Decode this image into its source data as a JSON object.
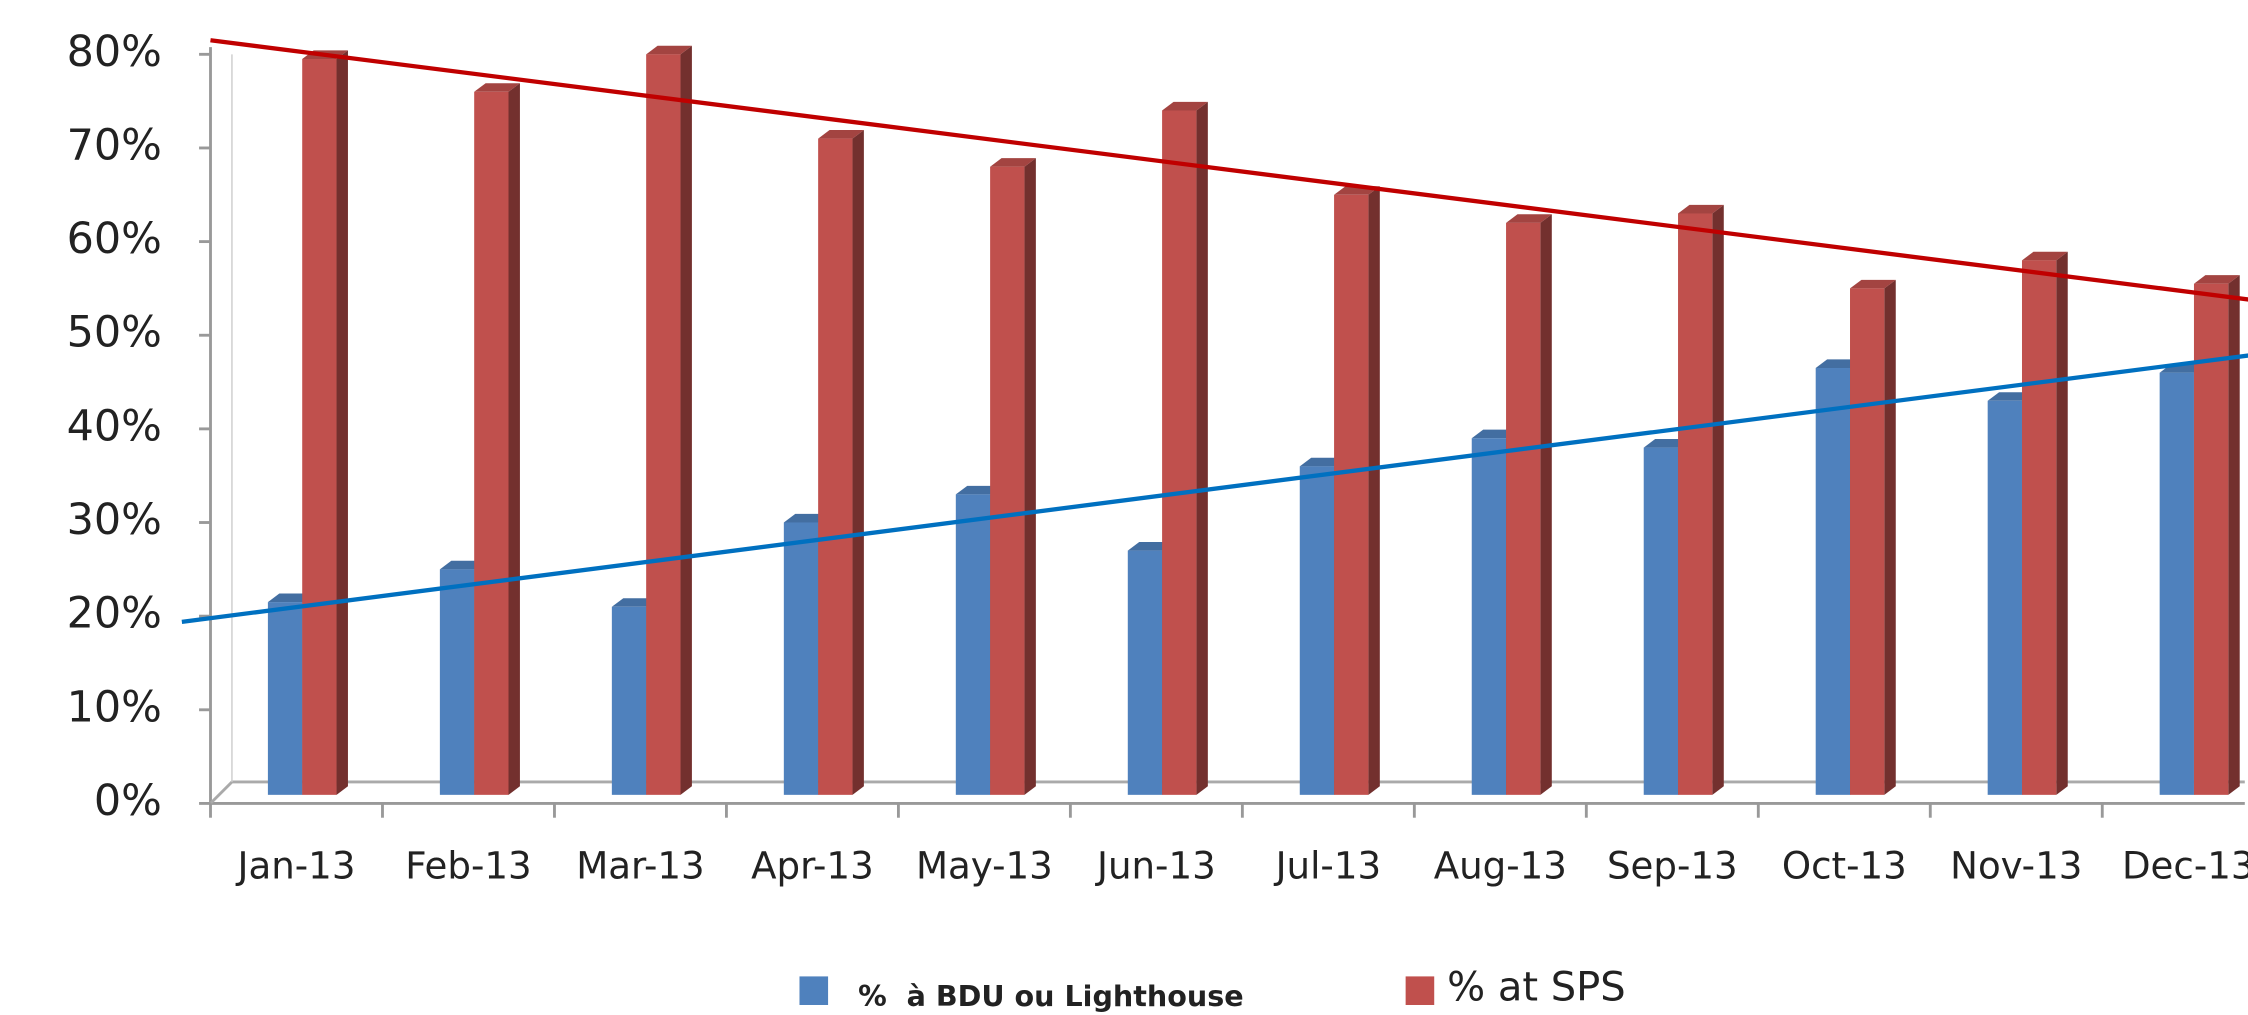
{
  "chart_data": {
    "type": "bar3d",
    "categories": [
      "Jan-13",
      "Feb-13",
      "Mar-13",
      "Apr-13",
      "May-13",
      "Jun-13",
      "Jul-13",
      "Aug-13",
      "Sep-13",
      "Oct-13",
      "Nov-13",
      "Dec-13"
    ],
    "series": [
      {
        "name": "%  à BDU ou Lighthouse",
        "color": "#4f81bd",
        "trend_color": "#0070c0",
        "values": [
          21.5,
          25,
          21,
          30,
          33,
          27,
          36,
          39,
          38,
          46.5,
          43,
          46
        ]
      },
      {
        "name": "% at SPS",
        "color": "#c0504d",
        "trend_color": "#c00000",
        "values": [
          79.5,
          76,
          80,
          71,
          68,
          74,
          65,
          62,
          63,
          55,
          58,
          55.5
        ]
      }
    ],
    "ylim": [
      0,
      80
    ],
    "yticks": [
      {
        "value": 0,
        "label": "0%"
      },
      {
        "value": 10,
        "label": "10%"
      },
      {
        "value": 20,
        "label": "20%"
      },
      {
        "value": 30,
        "label": "30%"
      },
      {
        "value": 40,
        "label": "40%"
      },
      {
        "value": 50,
        "label": "50%"
      },
      {
        "value": 60,
        "label": "60%"
      },
      {
        "value": 70,
        "label": "70%"
      },
      {
        "value": 80,
        "label": "80%"
      }
    ],
    "trendline": true
  }
}
